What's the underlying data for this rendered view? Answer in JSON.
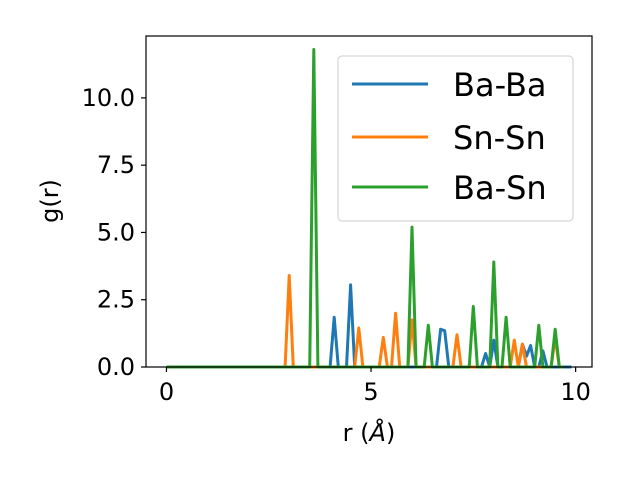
{
  "chart_data": {
    "type": "line",
    "xlabel_prefix": "r (",
    "xlabel_unit": "Å",
    "xlabel_suffix": ")",
    "ylabel": "g(r)",
    "xlim": [
      -0.5,
      10.4
    ],
    "ylim": [
      0,
      12.3
    ],
    "xticks": [
      0,
      5,
      10
    ],
    "xtick_labels": [
      "0",
      "5",
      "10"
    ],
    "yticks": [
      0,
      2.5,
      5,
      7.5,
      10
    ],
    "ytick_labels": [
      "0.0",
      "2.5",
      "5.0",
      "7.5",
      "10.0"
    ],
    "grid": false,
    "legend_position": "top-right",
    "series": [
      {
        "name": "Ba-Ba",
        "color": "#1f77b4",
        "x": [
          0,
          4.0,
          4.1,
          4.2,
          4.4,
          4.5,
          4.6,
          6.6,
          6.7,
          6.8,
          6.9,
          7.7,
          7.8,
          7.9,
          8.0,
          8.1,
          8.6,
          8.7,
          8.8,
          8.9,
          9.0,
          9.1,
          9.2,
          9.3,
          9.9
        ],
        "y": [
          0,
          0,
          1.85,
          0,
          0,
          3.05,
          0,
          0,
          1.4,
          1.35,
          0,
          0,
          0.5,
          0,
          1.0,
          0,
          0,
          0.85,
          0.4,
          0.8,
          0,
          0,
          0.6,
          0,
          0
        ]
      },
      {
        "name": "Sn-Sn",
        "color": "#ff7f0e",
        "x": [
          0,
          2.9,
          3.0,
          3.1,
          4.6,
          4.7,
          4.8,
          5.2,
          5.3,
          5.4,
          5.5,
          5.6,
          5.7,
          5.9,
          6.0,
          6.1,
          7.0,
          7.1,
          7.2,
          7.3,
          8.4,
          8.5,
          8.6,
          8.7,
          8.8,
          9.4,
          9.5,
          9.6
        ],
        "y": [
          0,
          0,
          3.4,
          0,
          0,
          1.45,
          0,
          0,
          1.1,
          0,
          0,
          2.0,
          0,
          0,
          1.75,
          0,
          0,
          1.2,
          0,
          0,
          0,
          1.0,
          0,
          0.85,
          0,
          0,
          1.1,
          0
        ]
      },
      {
        "name": "Ba-Sn",
        "color": "#2ca02c",
        "x": [
          0,
          3.5,
          3.6,
          3.7,
          5.9,
          6.0,
          6.1,
          6.3,
          6.4,
          6.5,
          7.4,
          7.5,
          7.6,
          7.9,
          8.0,
          8.1,
          8.2,
          8.3,
          8.4,
          9.0,
          9.1,
          9.2,
          9.4,
          9.5,
          9.6,
          9.7
        ],
        "y": [
          0,
          0,
          11.8,
          0,
          0,
          5.2,
          0,
          0,
          1.55,
          0,
          0,
          2.25,
          0,
          0,
          3.9,
          0,
          0,
          1.85,
          0,
          0,
          1.55,
          0,
          0,
          1.4,
          0,
          0
        ]
      }
    ]
  }
}
